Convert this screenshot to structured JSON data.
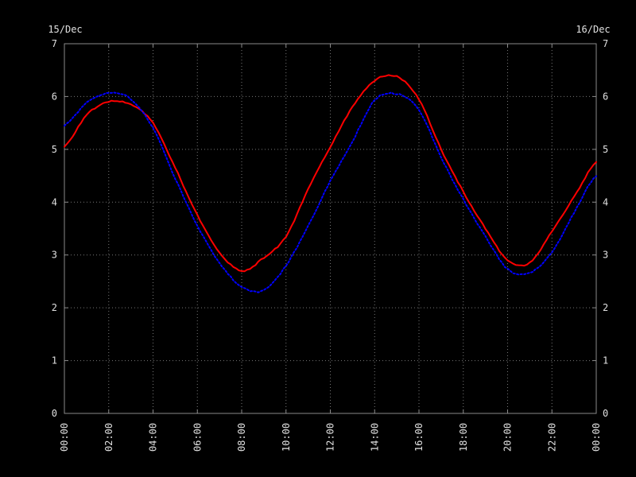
{
  "window": {
    "background": "#000000"
  },
  "chart_data": {
    "type": "line",
    "title": "",
    "date_labels": {
      "left": "15/Dec",
      "right": "16/Dec"
    },
    "x_axis": {
      "tick_labels": [
        "00:00",
        "02:00",
        "04:00",
        "06:00",
        "08:00",
        "10:00",
        "12:00",
        "14:00",
        "16:00",
        "18:00",
        "20:00",
        "22:00",
        "00:00"
      ],
      "tick_hours": [
        0,
        2,
        4,
        6,
        8,
        10,
        12,
        14,
        16,
        18,
        20,
        22,
        24
      ],
      "range_hours": [
        0,
        24
      ],
      "gridline_interval_hours": 2
    },
    "y_axis": {
      "ticks": [
        0,
        1,
        2,
        3,
        4,
        5,
        6,
        7
      ],
      "range": [
        0,
        7
      ],
      "labels_on_both_sides": true
    },
    "grid": true,
    "legend_position": "none",
    "series": [
      {
        "name": "red-curve",
        "color": "#ff0000",
        "line_style": "solid",
        "x_hours": [
          0,
          1,
          2,
          3,
          4,
          5,
          6,
          7,
          8,
          9,
          10,
          11,
          12,
          13,
          14,
          15,
          16,
          17,
          18,
          19,
          20,
          21,
          22,
          23,
          24
        ],
        "values": [
          5.05,
          5.65,
          5.9,
          5.85,
          5.5,
          4.65,
          3.75,
          3.05,
          2.7,
          2.95,
          3.35,
          4.25,
          5.05,
          5.8,
          6.3,
          6.38,
          5.95,
          5.0,
          4.2,
          3.5,
          2.9,
          2.85,
          3.45,
          4.1,
          4.75
        ]
      },
      {
        "name": "blue-curve",
        "color": "#0000ff",
        "line_style": "dotted",
        "x_hours": [
          0,
          1,
          2,
          3,
          4,
          5,
          6,
          7,
          8,
          9,
          10,
          11,
          12,
          13,
          14,
          15,
          16,
          17,
          18,
          19,
          20,
          21,
          22,
          23,
          24
        ],
        "values": [
          5.45,
          5.88,
          6.07,
          5.95,
          5.4,
          4.45,
          3.55,
          2.85,
          2.4,
          2.33,
          2.8,
          3.55,
          4.4,
          5.15,
          5.93,
          6.05,
          5.75,
          4.85,
          4.05,
          3.35,
          2.73,
          2.66,
          3.05,
          3.8,
          4.5
        ]
      }
    ],
    "colors": {
      "background": "#000000",
      "frame": "#8a8a8a",
      "grid": "#777777",
      "text": "#e0e0e0",
      "red_series": "#ff0000",
      "blue_series": "#0000ff"
    }
  }
}
